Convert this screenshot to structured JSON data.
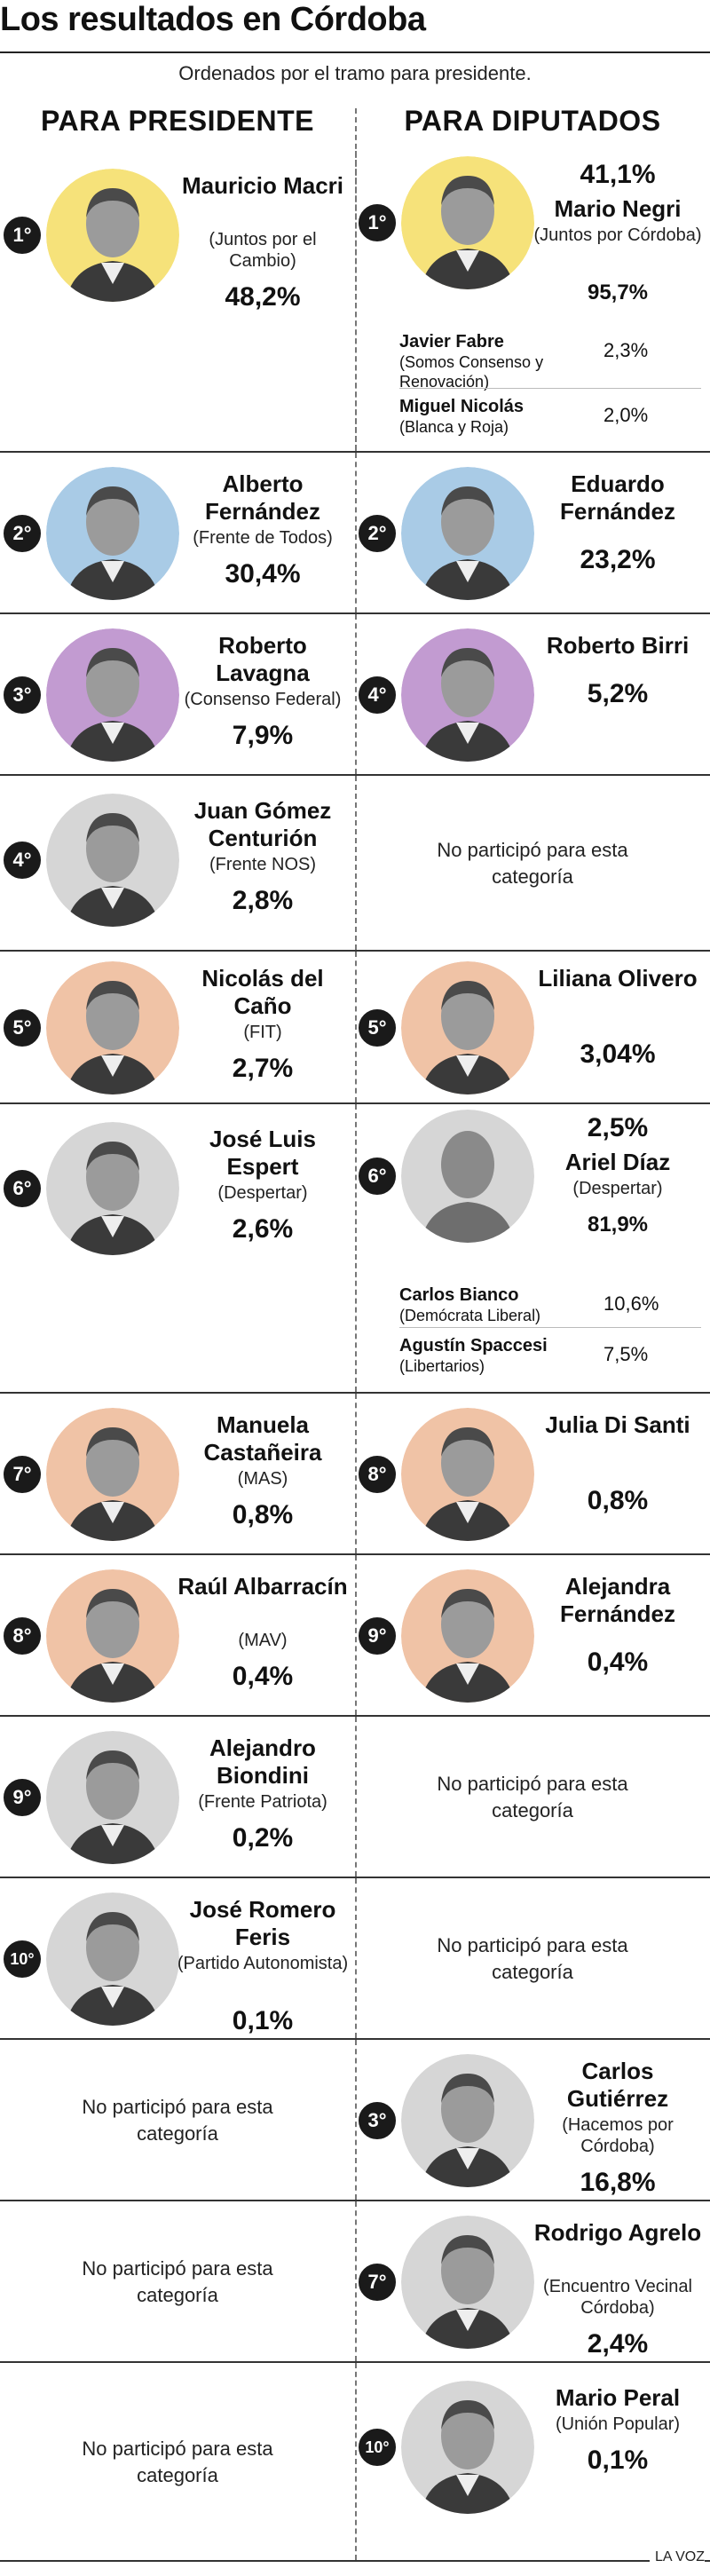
{
  "title": "Los resultados en Córdoba",
  "subtitle": "Ordenados por el tramo para presidente.",
  "headers": {
    "left": "PARA PRESIDENTE",
    "right": "PARA DIPUTADOS"
  },
  "not_participated": "No participó para esta categoría",
  "colors": {
    "yellow": "#f6e27a",
    "blue": "#a9cbe6",
    "purple": "#c29bd1",
    "grey": "#d6d6d6",
    "salmon": "#f0c3a6"
  },
  "rows": [
    {
      "pres": {
        "pos": "1°",
        "name": "Mauricio Macri",
        "party": "(Juntos por el Cambio)",
        "pct": "48,2%",
        "color": "yellow"
      },
      "dip": {
        "pos": "1°",
        "name": "Mario Negri",
        "party": "(Juntos por Córdoba)",
        "pct_top": "41,1%",
        "pct": "95,7%",
        "color": "yellow",
        "others": [
          {
            "name": "Javier Fabre",
            "party": "(Somos Consenso y Renovación)",
            "pct": "2,3%"
          },
          {
            "name": "Miguel Nicolás",
            "party": "(Blanca y Roja)",
            "pct": "2,0%"
          }
        ]
      }
    },
    {
      "pres": {
        "pos": "2°",
        "name": "Alberto Fernández",
        "party": "(Frente de Todos)",
        "pct": "30,4%",
        "color": "blue"
      },
      "dip": {
        "pos": "2°",
        "name": "Eduardo Fernández",
        "party": "",
        "pct": "23,2%",
        "color": "blue"
      }
    },
    {
      "pres": {
        "pos": "3°",
        "name": "Roberto Lavagna",
        "party": "(Consenso Federal)",
        "pct": "7,9%",
        "color": "purple"
      },
      "dip": {
        "pos": "4°",
        "name": "Roberto Birri",
        "party": "",
        "pct": "5,2%",
        "color": "purple"
      }
    },
    {
      "pres": {
        "pos": "4°",
        "name": "Juan Gómez Centurión",
        "party": "(Frente NOS)",
        "pct": "2,8%",
        "color": "grey"
      },
      "dip": null
    },
    {
      "pres": {
        "pos": "5°",
        "name": "Nicolás del Caño",
        "party": "(FIT)",
        "pct": "2,7%",
        "color": "salmon"
      },
      "dip": {
        "pos": "5°",
        "name": "Liliana Olivero",
        "party": "",
        "pct": "3,04%",
        "color": "salmon"
      }
    },
    {
      "pres": {
        "pos": "6°",
        "name": "José Luis Espert",
        "party": "(Despertar)",
        "pct": "2,6%",
        "color": "grey"
      },
      "dip": {
        "pos": "6°",
        "name": "Ariel Díaz",
        "party": "(Despertar)",
        "pct_top": "2,5%",
        "pct": "81,9%",
        "color": "grey",
        "silhouette": true,
        "others": [
          {
            "name": "Carlos Bianco",
            "party": "(Demócrata Liberal)",
            "pct": "10,6%"
          },
          {
            "name": "Agustín Spaccesi",
            "party": "(Libertarios)",
            "pct": "7,5%"
          }
        ]
      }
    },
    {
      "pres": {
        "pos": "7°",
        "name": "Manuela Castañeira",
        "party": "(MAS)",
        "pct": "0,8%",
        "color": "salmon"
      },
      "dip": {
        "pos": "8°",
        "name": "Julia Di Santi",
        "party": "",
        "pct": "0,8%",
        "color": "salmon"
      }
    },
    {
      "pres": {
        "pos": "8°",
        "name": "Raúl Albarracín",
        "party": "(MAV)",
        "pct": "0,4%",
        "color": "salmon"
      },
      "dip": {
        "pos": "9°",
        "name": "Alejandra Fernández",
        "party": "",
        "pct": "0,4%",
        "color": "salmon"
      }
    },
    {
      "pres": {
        "pos": "9°",
        "name": "Alejandro Biondini",
        "party": "(Frente Patriota)",
        "pct": "0,2%",
        "color": "grey"
      },
      "dip": null
    },
    {
      "pres": {
        "pos": "10°",
        "name": "José Romero Feris",
        "party": "(Partido Autonomista)",
        "pct": "0,1%",
        "color": "grey"
      },
      "dip": null
    },
    {
      "pres": null,
      "dip": {
        "pos": "3°",
        "name": "Carlos Gutiérrez",
        "party": "(Hacemos por Córdoba)",
        "pct": "16,8%",
        "color": "grey"
      }
    },
    {
      "pres": null,
      "dip": {
        "pos": "7°",
        "name": "Rodrigo Agrelo",
        "party": "(Encuentro Vecinal Córdoba)",
        "pct": "2,4%",
        "color": "grey"
      }
    },
    {
      "pres": null,
      "dip": {
        "pos": "10°",
        "name": "Mario Peral",
        "party": "(Unión Popular)",
        "pct": "0,1%",
        "color": "grey"
      }
    }
  ],
  "credit": "LA VOZ"
}
